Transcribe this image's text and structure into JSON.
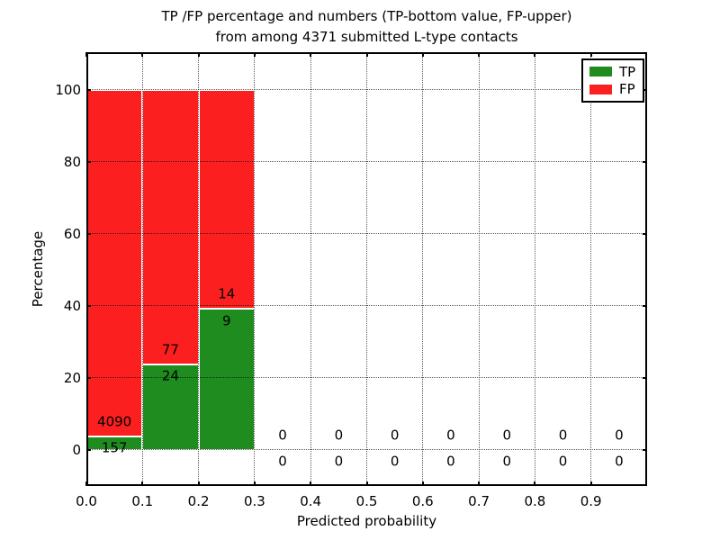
{
  "chart_data": {
    "type": "bar",
    "stacked": true,
    "title_line1": "TP /FP percentage and numbers (TP-bottom value, FP-upper)",
    "title_line2": "from among 4371 submitted L-type contacts",
    "xlabel": "Predicted probability",
    "ylabel": "Percentage",
    "total_submitted_contacts": 4371,
    "xlim": [
      0.0,
      1.0
    ],
    "ylim": [
      -10,
      110.5
    ],
    "bin_width": 0.1,
    "grid": true,
    "grid_style": "dotted",
    "x_ticks": [
      {
        "value": 0.0,
        "label": "0.0"
      },
      {
        "value": 0.1,
        "label": "0.1"
      },
      {
        "value": 0.2,
        "label": "0.2"
      },
      {
        "value": 0.3,
        "label": "0.3"
      },
      {
        "value": 0.4,
        "label": "0.4"
      },
      {
        "value": 0.5,
        "label": "0.5"
      },
      {
        "value": 0.6,
        "label": "0.6"
      },
      {
        "value": 0.7,
        "label": "0.7"
      },
      {
        "value": 0.8,
        "label": "0.8"
      },
      {
        "value": 0.9,
        "label": "0.9"
      }
    ],
    "y_ticks": [
      {
        "value": 0,
        "label": "0"
      },
      {
        "value": 20,
        "label": "20"
      },
      {
        "value": 40,
        "label": "40"
      },
      {
        "value": 60,
        "label": "60"
      },
      {
        "value": 80,
        "label": "80"
      },
      {
        "value": 100,
        "label": "100"
      }
    ],
    "legend": {
      "position": "upper right",
      "items": [
        {
          "name": "tp",
          "label": "TP",
          "color": "#1e8c1e"
        },
        {
          "name": "fp",
          "label": "FP",
          "color": "#fb1f1f"
        }
      ]
    },
    "colors": {
      "tp_green": "#1e8c1e",
      "fp_red": "#fb1f1f",
      "grid": "#000000",
      "background": "#ffffff"
    },
    "bin_centers": [
      0.05,
      0.15,
      0.25,
      0.35,
      0.45,
      0.55,
      0.65,
      0.75,
      0.85,
      0.95
    ],
    "bin_ranges": [
      "0.0-0.1",
      "0.1-0.2",
      "0.2-0.3",
      "0.3-0.4",
      "0.4-0.5",
      "0.5-0.6",
      "0.6-0.7",
      "0.7-0.8",
      "0.8-0.9",
      "0.9-1.0"
    ],
    "series": [
      {
        "name": "TP",
        "color": "#1e8c1e",
        "counts": [
          157,
          24,
          9,
          0,
          0,
          0,
          0,
          0,
          0,
          0
        ],
        "percentages": [
          3.7,
          23.76,
          39.13,
          0,
          0,
          0,
          0,
          0,
          0,
          0
        ]
      },
      {
        "name": "FP",
        "color": "#fb1f1f",
        "counts": [
          4090,
          77,
          14,
          0,
          0,
          0,
          0,
          0,
          0,
          0
        ],
        "percentages": [
          96.3,
          76.24,
          60.87,
          0,
          0,
          0,
          0,
          0,
          0,
          0
        ]
      }
    ],
    "count_labels": {
      "upper_row_series": "FP",
      "lower_row_series": "TP",
      "upper": [
        "4090",
        "77",
        "14",
        "0",
        "0",
        "0",
        "0",
        "0",
        "0",
        "0"
      ],
      "lower": [
        "157",
        "24",
        "9",
        "0",
        "0",
        "0",
        "0",
        "0",
        "0",
        "0"
      ]
    }
  }
}
